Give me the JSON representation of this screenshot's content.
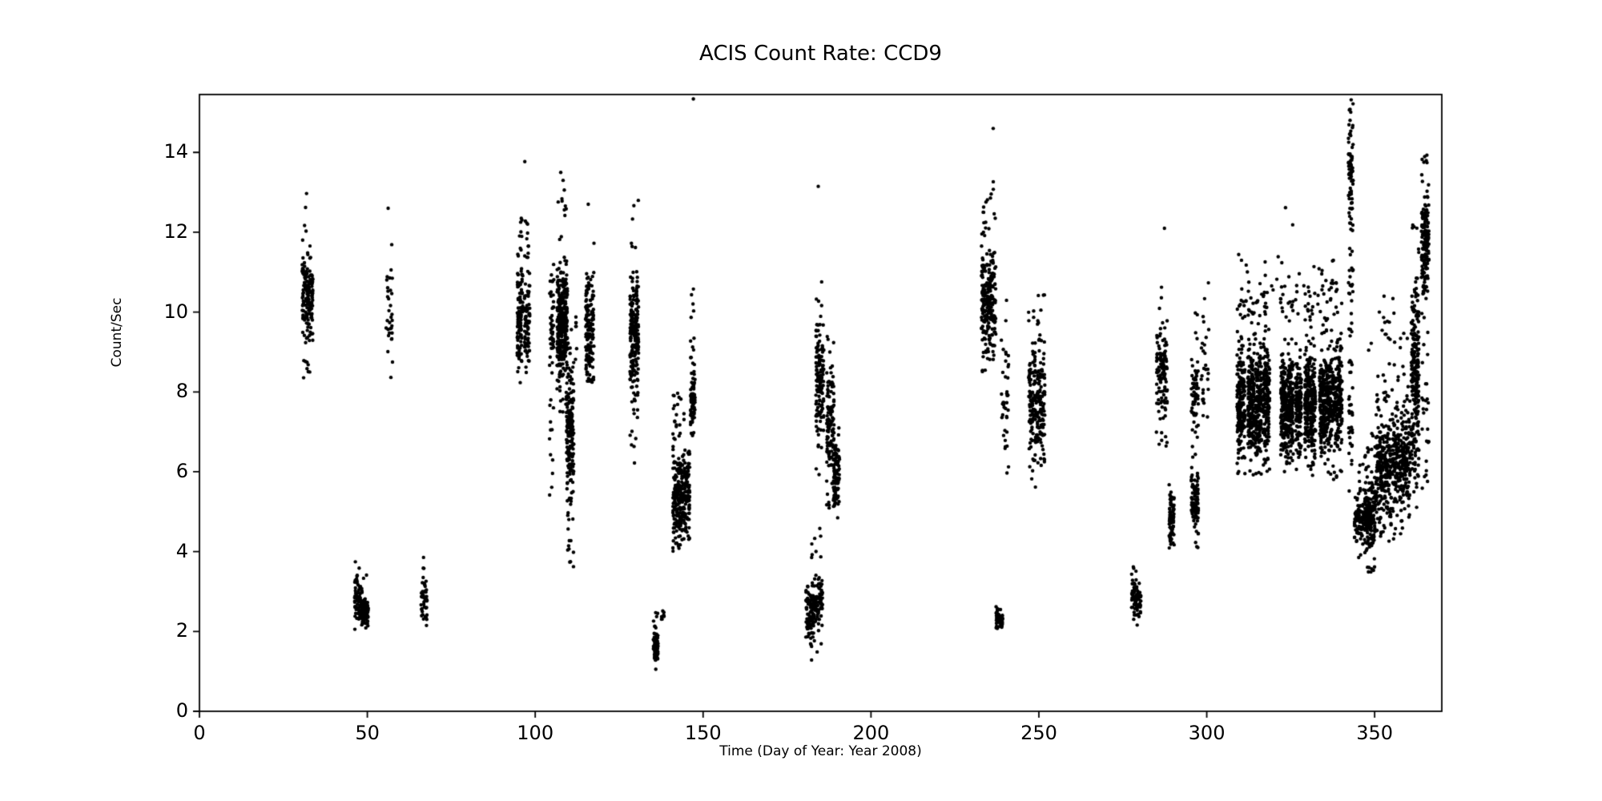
{
  "figure": {
    "title": "ACIS Count Rate: CCD9",
    "xlabel": "Time (Day of Year: Year 2008)",
    "ylabel": "Count/Sec",
    "background_color": "#ffffff",
    "marker_color": "#000000",
    "axis_color": "#000000"
  },
  "chart_data": {
    "type": "scatter",
    "title": "ACIS Count Rate: CCD9",
    "xlabel": "Time (Day of Year: Year 2008)",
    "ylabel": "Count/Sec",
    "xlim": [
      0,
      370
    ],
    "ylim": [
      0,
      15.45
    ],
    "xticks": [
      0,
      50,
      100,
      150,
      200,
      250,
      300,
      350
    ],
    "yticks": [
      0,
      2,
      4,
      6,
      8,
      10,
      12,
      14
    ],
    "grid": false,
    "legend": null,
    "marker": {
      "shape": "circle",
      "radius_px": 2.2,
      "color": "#000000"
    },
    "clusters": [
      {
        "days": [
          30.6,
          32.4
        ],
        "core": [
          9.3,
          11.8
        ],
        "full": [
          8.2,
          12.2
        ],
        "n": 90,
        "p": 0.8
      },
      {
        "days": [
          32.4,
          33.8
        ],
        "core": [
          9.0,
          11.5
        ],
        "full": [
          8.3,
          12.1
        ],
        "n": 70,
        "p": 0.8
      },
      {
        "days": [
          46.2,
          48.2
        ],
        "core": [
          2.2,
          3.4
        ],
        "full": [
          2.0,
          3.8
        ],
        "n": 70,
        "p": 0.8
      },
      {
        "days": [
          48.2,
          50.3
        ],
        "core": [
          2.05,
          2.9
        ],
        "full": [
          1.97,
          3.6
        ],
        "n": 95,
        "p": 0.85
      },
      {
        "days": [
          55.6,
          57.6
        ],
        "core": [
          8.8,
          11.3
        ],
        "full": [
          8.3,
          12.0
        ],
        "n": 32,
        "p": 0.7
      },
      {
        "days": [
          66.0,
          67.8
        ],
        "core": [
          2.2,
          3.3
        ],
        "full": [
          1.97,
          3.9
        ],
        "n": 45,
        "p": 0.8
      },
      {
        "days": [
          94.6,
          96.3
        ],
        "core": [
          8.5,
          11.2
        ],
        "full": [
          8.2,
          12.4
        ],
        "n": 110,
        "p": 0.78
      },
      {
        "days": [
          96.8,
          98.4
        ],
        "core": [
          8.5,
          11.2
        ],
        "full": [
          8.2,
          12.4
        ],
        "n": 90,
        "p": 0.78
      },
      {
        "days": [
          104.2,
          105.6
        ],
        "core": [
          7.9,
          11.3
        ],
        "full": [
          5.4,
          11.4
        ],
        "n": 55,
        "p": 0.6
      },
      {
        "days": [
          106.5,
          109.6
        ],
        "core": [
          8.3,
          11.4
        ],
        "full": [
          7.4,
          13.1
        ],
        "n": 330,
        "p": 0.85
      },
      {
        "days": [
          109.3,
          111.5
        ],
        "core": [
          4.8,
          9.4
        ],
        "full": [
          3.6,
          9.6
        ],
        "n": 190,
        "p": 0.8
      },
      {
        "days": [
          111.8,
          112.4
        ],
        "core": [
          8.7,
          10.3
        ],
        "full": [
          8.7,
          10.3
        ],
        "n": 7,
        "p": 1
      },
      {
        "days": [
          115.0,
          117.5
        ],
        "core": [
          7.9,
          11.1
        ],
        "full": [
          7.7,
          12.3
        ],
        "n": 150,
        "p": 0.82
      },
      {
        "days": [
          128.2,
          130.8
        ],
        "core": [
          7.7,
          11.2
        ],
        "full": [
          6.0,
          12.9
        ],
        "n": 210,
        "p": 0.8
      },
      {
        "days": [
          135.1,
          136.6
        ],
        "core": [
          1.1,
          2.2
        ],
        "full": [
          1.0,
          2.5
        ],
        "n": 70,
        "p": 0.85
      },
      {
        "days": [
          137.6,
          138.4
        ],
        "core": [
          2.2,
          2.6
        ],
        "full": [
          2.2,
          2.6
        ],
        "n": 8,
        "p": 1
      },
      {
        "days": [
          141.0,
          143.6
        ],
        "core": [
          4.1,
          6.5
        ],
        "full": [
          3.9,
          8.1
        ],
        "n": 180,
        "p": 0.85
      },
      {
        "days": [
          143.5,
          146.0
        ],
        "core": [
          4.2,
          6.6
        ],
        "full": [
          4.0,
          7.7
        ],
        "n": 150,
        "p": 0.85
      },
      {
        "days": [
          146.2,
          147.6
        ],
        "core": [
          6.7,
          8.8
        ],
        "full": [
          6.4,
          10.6
        ],
        "n": 90,
        "p": 0.8
      },
      {
        "days": [
          180.6,
          183.0
        ],
        "core": [
          1.6,
          3.3
        ],
        "full": [
          1.2,
          4.2
        ],
        "n": 100,
        "p": 0.82
      },
      {
        "days": [
          183.0,
          185.6
        ],
        "core": [
          1.9,
          3.6
        ],
        "full": [
          1.4,
          4.6
        ],
        "n": 80,
        "p": 0.8
      },
      {
        "days": [
          183.6,
          186.0
        ],
        "core": [
          6.8,
          9.6
        ],
        "full": [
          5.9,
          10.9
        ],
        "n": 140,
        "p": 0.8
      },
      {
        "days": [
          186.8,
          189.0
        ],
        "core": [
          5.6,
          8.8
        ],
        "full": [
          4.9,
          9.4
        ],
        "n": 120,
        "p": 0.8
      },
      {
        "days": [
          188.8,
          190.6
        ],
        "core": [
          4.9,
          6.8
        ],
        "full": [
          4.4,
          7.4
        ],
        "n": 90,
        "p": 0.85
      },
      {
        "days": [
          232.9,
          235.1
        ],
        "core": [
          8.8,
          11.6
        ],
        "full": [
          8.3,
          13.0
        ],
        "n": 130,
        "p": 0.8
      },
      {
        "days": [
          235.1,
          237.2
        ],
        "core": [
          8.8,
          11.7
        ],
        "full": [
          8.3,
          13.4
        ],
        "n": 110,
        "p": 0.8
      },
      {
        "days": [
          237.2,
          239.2
        ],
        "core": [
          1.97,
          2.6
        ],
        "full": [
          1.97,
          2.7
        ],
        "n": 55,
        "p": 0.9
      },
      {
        "days": [
          238.8,
          241.0
        ],
        "core": [
          5.7,
          9.8
        ],
        "full": [
          5.6,
          10.4
        ],
        "n": 40,
        "p": 0.75
      },
      {
        "days": [
          246.9,
          249.3
        ],
        "core": [
          6.1,
          9.3
        ],
        "full": [
          5.6,
          10.2
        ],
        "n": 120,
        "p": 0.8
      },
      {
        "days": [
          249.5,
          251.8
        ],
        "core": [
          6.1,
          9.4
        ],
        "full": [
          5.7,
          10.6
        ],
        "n": 120,
        "p": 0.8
      },
      {
        "days": [
          277.6,
          280.4
        ],
        "core": [
          2.3,
          3.3
        ],
        "full": [
          2.1,
          3.7
        ],
        "n": 80,
        "p": 0.85
      },
      {
        "days": [
          285.0,
          288.3
        ],
        "core": [
          7.4,
          9.8
        ],
        "full": [
          6.4,
          11.0
        ],
        "n": 120,
        "p": 0.78
      },
      {
        "days": [
          288.8,
          290.3
        ],
        "core": [
          4.0,
          5.6
        ],
        "full": [
          3.9,
          5.7
        ],
        "n": 80,
        "p": 0.9
      },
      {
        "days": [
          295.4,
          297.5
        ],
        "core": [
          4.5,
          6.2
        ],
        "full": [
          4.0,
          6.4
        ],
        "n": 90,
        "p": 0.85
      },
      {
        "days": [
          295.4,
          297.5
        ],
        "core": [
          6.9,
          8.8
        ],
        "full": [
          6.3,
          10.6
        ],
        "n": 60,
        "p": 0.75
      },
      {
        "days": [
          298.2,
          300.6
        ],
        "core": [
          7.0,
          10.0
        ],
        "full": [
          6.5,
          11.3
        ],
        "n": 28,
        "p": 0.7
      },
      {
        "days": [
          309.0,
          311.4
        ],
        "core": [
          6.3,
          9.0
        ],
        "full": [
          5.9,
          10.3
        ],
        "n": 200,
        "p": 0.8
      },
      {
        "days": [
          312.2,
          314.2
        ],
        "core": [
          6.4,
          9.2
        ],
        "full": [
          5.9,
          10.8
        ],
        "n": 190,
        "p": 0.78
      },
      {
        "days": [
          314.4,
          316.3
        ],
        "core": [
          6.3,
          9.0
        ],
        "full": [
          5.9,
          10.5
        ],
        "n": 180,
        "p": 0.78
      },
      {
        "days": [
          316.6,
          318.7
        ],
        "core": [
          6.5,
          9.3
        ],
        "full": [
          6.0,
          11.0
        ],
        "n": 180,
        "p": 0.78
      },
      {
        "days": [
          322.0,
          324.0
        ],
        "core": [
          6.3,
          9.0
        ],
        "full": [
          5.9,
          10.6
        ],
        "n": 170,
        "p": 0.78
      },
      {
        "days": [
          324.2,
          325.8
        ],
        "core": [
          6.4,
          9.1
        ],
        "full": [
          6.0,
          10.4
        ],
        "n": 150,
        "p": 0.78
      },
      {
        "days": [
          326.4,
          328.2
        ],
        "core": [
          6.3,
          8.9
        ],
        "full": [
          5.8,
          10.2
        ],
        "n": 150,
        "p": 0.8
      },
      {
        "days": [
          329.2,
          330.8
        ],
        "core": [
          6.4,
          9.2
        ],
        "full": [
          5.9,
          10.9
        ],
        "n": 150,
        "p": 0.78
      },
      {
        "days": [
          330.9,
          332.4
        ],
        "core": [
          6.2,
          8.8
        ],
        "full": [
          5.8,
          10.3
        ],
        "n": 140,
        "p": 0.8
      },
      {
        "days": [
          333.6,
          335.4
        ],
        "core": [
          6.3,
          9.1
        ],
        "full": [
          5.9,
          11.0
        ],
        "n": 150,
        "p": 0.78
      },
      {
        "days": [
          335.5,
          337.2
        ],
        "core": [
          6.4,
          9.2
        ],
        "full": [
          5.9,
          10.8
        ],
        "n": 150,
        "p": 0.78
      },
      {
        "days": [
          337.4,
          340.3
        ],
        "core": [
          6.3,
          9.3
        ],
        "full": [
          5.8,
          11.4
        ],
        "n": 200,
        "p": 0.78
      },
      {
        "days": [
          309.0,
          341.0
        ],
        "core": [
          9.8,
          11.5
        ],
        "full": [
          9.8,
          12.9
        ],
        "n": 45,
        "p": 0.8
      },
      {
        "days": [
          342.2,
          343.6
        ],
        "core": [
          11.8,
          15.35
        ],
        "full": [
          9.4,
          15.4
        ],
        "n": 100,
        "p": 0.6
      },
      {
        "days": [
          342.3,
          343.5
        ],
        "core": [
          5.3,
          9.4
        ],
        "full": [
          5.3,
          9.4
        ],
        "n": 30,
        "p": 1
      },
      {
        "days": [
          344.0,
          346.8
        ],
        "core": [
          4.2,
          5.4
        ],
        "full": [
          3.6,
          6.2
        ],
        "n": 90,
        "p": 0.8
      },
      {
        "days": [
          347.0,
          350.2
        ],
        "core": [
          3.9,
          5.8
        ],
        "full": [
          3.4,
          7.0
        ],
        "n": 200,
        "p": 0.82
      },
      {
        "days": [
          350.4,
          355.0
        ],
        "core": [
          4.6,
          7.4
        ],
        "full": [
          4.2,
          8.8
        ],
        "n": 260,
        "p": 0.8
      },
      {
        "days": [
          355.2,
          360.6
        ],
        "core": [
          4.8,
          7.6
        ],
        "full": [
          4.3,
          9.0
        ],
        "n": 280,
        "p": 0.8
      },
      {
        "days": [
          347.0,
          360.5
        ],
        "core": [
          8.8,
          10.0
        ],
        "full": [
          8.8,
          10.4
        ],
        "n": 18,
        "p": 0.8
      },
      {
        "days": [
          360.9,
          363.2
        ],
        "core": [
          5.3,
          11.1
        ],
        "full": [
          4.9,
          12.4
        ],
        "n": 240,
        "p": 0.85
      },
      {
        "days": [
          363.9,
          366.2
        ],
        "core": [
          10.3,
          13.1
        ],
        "full": [
          9.8,
          14.05
        ],
        "n": 170,
        "p": 0.82
      },
      {
        "days": [
          363.9,
          366.2
        ],
        "core": [
          5.2,
          9.8
        ],
        "full": [
          5.2,
          9.8
        ],
        "n": 25,
        "p": 1
      }
    ],
    "outlier_points": [
      [
        31.6,
        12.62
      ],
      [
        31.9,
        12.97
      ],
      [
        56.2,
        12.6
      ],
      [
        96.9,
        13.77
      ],
      [
        107.6,
        13.5
      ],
      [
        108.3,
        13.3
      ],
      [
        115.8,
        12.7
      ],
      [
        147.1,
        15.34
      ],
      [
        184.3,
        13.15
      ],
      [
        236.4,
        14.6
      ],
      [
        287.4,
        12.1
      ],
      [
        333.1,
        10.2
      ],
      [
        351.4,
        10.0
      ],
      [
        352.8,
        10.4
      ]
    ]
  },
  "layout_note": ""
}
